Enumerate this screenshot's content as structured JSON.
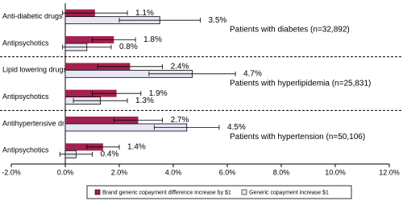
{
  "chart_data": {
    "type": "hbar",
    "categories": [
      "Anti-diabetic drugs",
      "Antipsychotics",
      "Lipid lowering drugs",
      "Antipsychotics",
      "Antihypertensive drugs",
      "Antipsychotics"
    ],
    "series": [
      {
        "name": "Brand generic copayment difference increase by $1",
        "color": "#a3214f",
        "values": [
          1.1,
          1.8,
          2.4,
          1.9,
          2.7,
          1.4
        ],
        "errors": [
          1.2,
          0.8,
          1.2,
          0.9,
          0.9,
          0.6
        ],
        "value_labels": [
          "1.1%",
          "1.8%",
          "2.4%",
          "1.9%",
          "2.7%",
          "1.4%"
        ]
      },
      {
        "name": "Generic copayment increase $1",
        "color": "#e8e6f4",
        "values": [
          3.5,
          0.8,
          4.7,
          1.3,
          4.5,
          0.4
        ],
        "errors": [
          1.5,
          0.9,
          1.6,
          1.0,
          1.2,
          0.6
        ],
        "value_labels": [
          "3.5%",
          "0.8%",
          "4.7%",
          "1.3%",
          "4.5%",
          "0.4%"
        ]
      }
    ],
    "annotations": [
      "Patients with diabetes (n=32,892)",
      "Patients with hyperlipidemia (n=25,831)",
      "Patients with hypertension (n=50,106)"
    ],
    "xlim": [
      -2,
      12
    ],
    "xticks": [
      {
        "value": -2,
        "label": "-2.0%"
      },
      {
        "value": 0,
        "label": "0.0%"
      },
      {
        "value": 2,
        "label": "2.0%"
      },
      {
        "value": 4,
        "label": "4.0%"
      },
      {
        "value": 6,
        "label": "6.0%"
      },
      {
        "value": 8,
        "label": "8.0%"
      },
      {
        "value": 10,
        "label": "10.0%"
      },
      {
        "value": 12,
        "label": "12.0%"
      }
    ],
    "legend": "bottom"
  }
}
